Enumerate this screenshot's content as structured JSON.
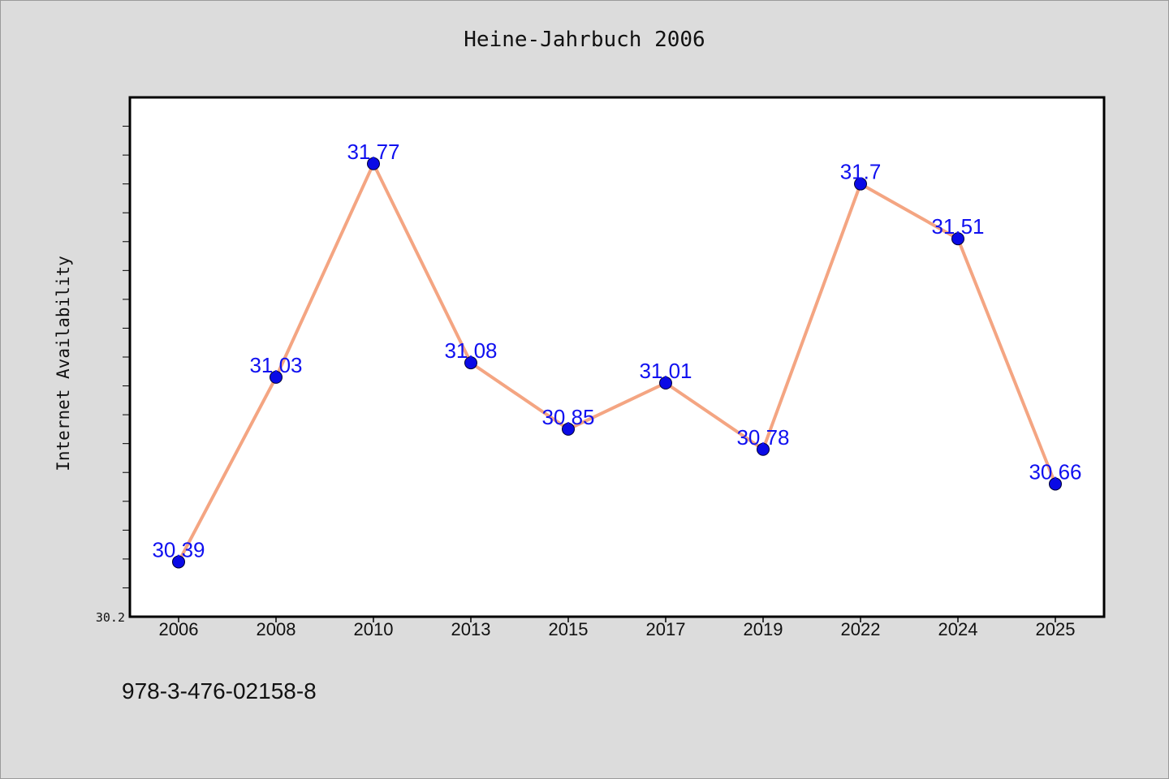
{
  "chart_data": {
    "type": "line",
    "title": "Heine-Jahrbuch 2006",
    "xlabel": "",
    "ylabel": "Internet Availability",
    "categories": [
      "2006",
      "2008",
      "2010",
      "2013",
      "2015",
      "2017",
      "2019",
      "2022",
      "2024",
      "2025"
    ],
    "series": [
      {
        "values": [
          30.39,
          31.03,
          31.77,
          31.08,
          30.85,
          31.01,
          30.78,
          31.7,
          31.51,
          30.66
        ],
        "line_color": "#f4a582",
        "marker_color": "#0a0ae6"
      }
    ],
    "ylim": [
      30.2,
      32.0
    ],
    "y_tick_labels": [
      "30.2"
    ],
    "data_labels": [
      "30.39",
      "31.03",
      "31.77",
      "31.08",
      "30.85",
      "31.01",
      "30.78",
      "31.7",
      "31.51",
      "30.66"
    ],
    "grid": false,
    "legend": "none"
  },
  "footnote": "978-3-476-02158-8"
}
